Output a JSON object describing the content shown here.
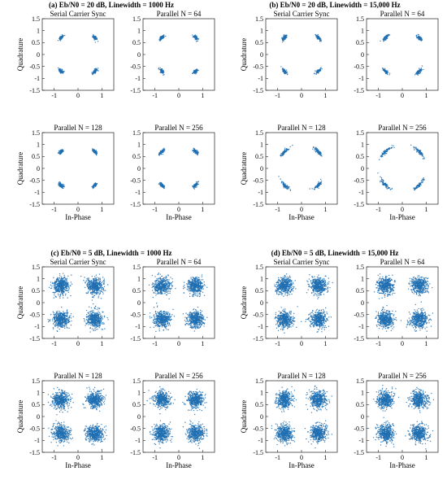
{
  "chart_data": [
    {
      "title": "(a) Eb/N0 = 20 dB, Linewidth = 1000 Hz",
      "subplots": [
        {
          "type": "scatter",
          "title": "Serial Carrier Sync",
          "xlabel": "",
          "ylabel": "Quadrature",
          "xlim": [
            -1.5,
            1.5
          ],
          "ylim": [
            -1.5,
            1.5
          ],
          "xticks": [
            "-1",
            "0",
            "1"
          ],
          "yticks": [
            "1.5",
            "1",
            "0.5",
            "0",
            "-0.5",
            "-1",
            "-1.5"
          ],
          "centers": [
            [
              -0.707,
              0.707
            ],
            [
              0.707,
              0.707
            ],
            [
              -0.707,
              -0.707
            ],
            [
              0.707,
              -0.707
            ]
          ],
          "noise_std": 0.03,
          "phase_spread": 0.06,
          "points_per_cluster": 80,
          "color": "#1f6fb2"
        },
        {
          "type": "scatter",
          "title": "Parallel N = 64",
          "xlabel": "",
          "ylabel": "",
          "xlim": [
            -1.5,
            1.5
          ],
          "ylim": [
            -1.5,
            1.5
          ],
          "xticks": [
            "-1",
            "0",
            "1"
          ],
          "yticks": [
            "1.5",
            "1",
            "0.5",
            "0",
            "-0.5",
            "-1",
            "-1.5"
          ],
          "centers": [
            [
              -0.707,
              0.707
            ],
            [
              0.707,
              0.707
            ],
            [
              -0.707,
              -0.707
            ],
            [
              0.707,
              -0.707
            ]
          ],
          "noise_std": 0.03,
          "phase_spread": 0.06,
          "points_per_cluster": 80,
          "color": "#1f6fb2"
        },
        {
          "type": "scatter",
          "title": "Parallel N = 128",
          "xlabel": "In-Phase",
          "ylabel": "Quadrature",
          "xlim": [
            -1.5,
            1.5
          ],
          "ylim": [
            -1.5,
            1.5
          ],
          "xticks": [
            "-1",
            "0",
            "1"
          ],
          "yticks": [
            "1.5",
            "1",
            "0.5",
            "0",
            "-0.5",
            "-1",
            "-1.5"
          ],
          "centers": [
            [
              -0.707,
              0.707
            ],
            [
              0.707,
              0.707
            ],
            [
              -0.707,
              -0.707
            ],
            [
              0.707,
              -0.707
            ]
          ],
          "noise_std": 0.03,
          "phase_spread": 0.06,
          "points_per_cluster": 80,
          "color": "#1f6fb2"
        },
        {
          "type": "scatter",
          "title": "Parallel N = 256",
          "xlabel": "In-Phase",
          "ylabel": "",
          "xlim": [
            -1.5,
            1.5
          ],
          "ylim": [
            -1.5,
            1.5
          ],
          "xticks": [
            "-1",
            "0",
            "1"
          ],
          "yticks": [
            "1.5",
            "1",
            "0.5",
            "0",
            "-0.5",
            "-1",
            "-1.5"
          ],
          "centers": [
            [
              -0.707,
              0.707
            ],
            [
              0.707,
              0.707
            ],
            [
              -0.707,
              -0.707
            ],
            [
              0.707,
              -0.707
            ]
          ],
          "noise_std": 0.03,
          "phase_spread": 0.07,
          "points_per_cluster": 80,
          "color": "#1f6fb2"
        }
      ]
    },
    {
      "title": "(b) Eb/N0 = 20 dB, Linewidth = 15,000 Hz",
      "subplots": [
        {
          "type": "scatter",
          "title": "Serial Carrier Sync",
          "xlabel": "",
          "ylabel": "Quadrature",
          "xlim": [
            -1.5,
            1.5
          ],
          "ylim": [
            -1.5,
            1.5
          ],
          "xticks": [
            "-1",
            "0",
            "1"
          ],
          "yticks": [
            "1.5",
            "1",
            "0.5",
            "0",
            "-0.5",
            "-1",
            "-1.5"
          ],
          "centers": [
            [
              -0.707,
              0.707
            ],
            [
              0.707,
              0.707
            ],
            [
              -0.707,
              -0.707
            ],
            [
              0.707,
              -0.707
            ]
          ],
          "noise_std": 0.03,
          "phase_spread": 0.07,
          "points_per_cluster": 80,
          "color": "#1f6fb2"
        },
        {
          "type": "scatter",
          "title": "Parallel N = 64",
          "xlabel": "",
          "ylabel": "",
          "xlim": [
            -1.5,
            1.5
          ],
          "ylim": [
            -1.5,
            1.5
          ],
          "xticks": [
            "-1",
            "0",
            "1"
          ],
          "yticks": [
            "1.5",
            "1",
            "0.5",
            "0",
            "-0.5",
            "-1",
            "-1.5"
          ],
          "centers": [
            [
              -0.707,
              0.707
            ],
            [
              0.707,
              0.707
            ],
            [
              -0.707,
              -0.707
            ],
            [
              0.707,
              -0.707
            ]
          ],
          "noise_std": 0.03,
          "phase_spread": 0.08,
          "points_per_cluster": 80,
          "color": "#1f6fb2"
        },
        {
          "type": "scatter",
          "title": "Parallel N = 128",
          "xlabel": "In-Phase",
          "ylabel": "Quadrature",
          "xlim": [
            -1.5,
            1.5
          ],
          "ylim": [
            -1.5,
            1.5
          ],
          "xticks": [
            "-1",
            "0",
            "1"
          ],
          "yticks": [
            "1.5",
            "1",
            "0.5",
            "0",
            "-0.5",
            "-1",
            "-1.5"
          ],
          "centers": [
            [
              -0.707,
              0.707
            ],
            [
              0.707,
              0.707
            ],
            [
              -0.707,
              -0.707
            ],
            [
              0.707,
              -0.707
            ]
          ],
          "noise_std": 0.03,
          "phase_spread": 0.12,
          "points_per_cluster": 80,
          "color": "#1f6fb2"
        },
        {
          "type": "scatter",
          "title": "Parallel N = 256",
          "xlabel": "In-Phase",
          "ylabel": "",
          "xlim": [
            -1.5,
            1.5
          ],
          "ylim": [
            -1.5,
            1.5
          ],
          "xticks": [
            "-1",
            "0",
            "1"
          ],
          "yticks": [
            "1.5",
            "1",
            "0.5",
            "0",
            "-0.5",
            "-1",
            "-1.5"
          ],
          "centers": [
            [
              -0.707,
              0.707
            ],
            [
              0.707,
              0.707
            ],
            [
              -0.707,
              -0.707
            ],
            [
              0.707,
              -0.707
            ]
          ],
          "noise_std": 0.03,
          "phase_spread": 0.16,
          "points_per_cluster": 80,
          "color": "#1f6fb2"
        }
      ]
    },
    {
      "title": "(c) Eb/N0 = 5 dB, Linewidth = 1000 Hz",
      "subplots": [
        {
          "type": "scatter",
          "title": "Serial Carrier Sync",
          "xlabel": "",
          "ylabel": "Quadrature",
          "xlim": [
            -1.5,
            1.5
          ],
          "ylim": [
            -1.5,
            1.5
          ],
          "xticks": [
            "-1",
            "0",
            "1"
          ],
          "yticks": [
            "1.5",
            "1",
            "0.5",
            "0",
            "-0.5",
            "-1",
            "-1.5"
          ],
          "centers": [
            [
              -0.707,
              0.707
            ],
            [
              0.707,
              0.707
            ],
            [
              -0.707,
              -0.707
            ],
            [
              0.707,
              -0.707
            ]
          ],
          "noise_std": 0.17,
          "phase_spread": 0.03,
          "points_per_cluster": 450,
          "color": "#1f6fb2"
        },
        {
          "type": "scatter",
          "title": "Parallel N = 64",
          "xlabel": "",
          "ylabel": "",
          "xlim": [
            -1.5,
            1.5
          ],
          "ylim": [
            -1.5,
            1.5
          ],
          "xticks": [
            "-1",
            "0",
            "1"
          ],
          "yticks": [
            "1.5",
            "1",
            "0.5",
            "0",
            "-0.5",
            "-1",
            "-1.5"
          ],
          "centers": [
            [
              -0.707,
              0.707
            ],
            [
              0.707,
              0.707
            ],
            [
              -0.707,
              -0.707
            ],
            [
              0.707,
              -0.707
            ]
          ],
          "noise_std": 0.17,
          "phase_spread": 0.03,
          "points_per_cluster": 450,
          "color": "#1f6fb2"
        },
        {
          "type": "scatter",
          "title": "Parallel N = 128",
          "xlabel": "In-Phase",
          "ylabel": "Quadrature",
          "xlim": [
            -1.5,
            1.5
          ],
          "ylim": [
            -1.5,
            1.5
          ],
          "xticks": [
            "-1",
            "0",
            "1"
          ],
          "yticks": [
            "1.5",
            "1",
            "0.5",
            "0",
            "-0.5",
            "-1",
            "-1.5"
          ],
          "centers": [
            [
              -0.707,
              0.707
            ],
            [
              0.707,
              0.707
            ],
            [
              -0.707,
              -0.707
            ],
            [
              0.707,
              -0.707
            ]
          ],
          "noise_std": 0.17,
          "phase_spread": 0.03,
          "points_per_cluster": 450,
          "color": "#1f6fb2"
        },
        {
          "type": "scatter",
          "title": "Parallel N = 256",
          "xlabel": "In-Phase",
          "ylabel": "",
          "xlim": [
            -1.5,
            1.5
          ],
          "ylim": [
            -1.5,
            1.5
          ],
          "xticks": [
            "-1",
            "0",
            "1"
          ],
          "yticks": [
            "1.5",
            "1",
            "0.5",
            "0",
            "-0.5",
            "-1",
            "-1.5"
          ],
          "centers": [
            [
              -0.707,
              0.707
            ],
            [
              0.707,
              0.707
            ],
            [
              -0.707,
              -0.707
            ],
            [
              0.707,
              -0.707
            ]
          ],
          "noise_std": 0.17,
          "phase_spread": 0.03,
          "points_per_cluster": 450,
          "color": "#1f6fb2"
        }
      ]
    },
    {
      "title": "(d) Eb/N0 = 5 dB, Linewidth = 15,000 Hz",
      "subplots": [
        {
          "type": "scatter",
          "title": "Serial Carrier Sync",
          "xlabel": "",
          "ylabel": "Quadrature",
          "xlim": [
            -1.5,
            1.5
          ],
          "ylim": [
            -1.5,
            1.5
          ],
          "xticks": [
            "-1",
            "0",
            "1"
          ],
          "yticks": [
            "1.5",
            "1",
            "0.5",
            "0",
            "-0.5",
            "-1",
            "-1.5"
          ],
          "centers": [
            [
              -0.707,
              0.707
            ],
            [
              0.707,
              0.707
            ],
            [
              -0.707,
              -0.707
            ],
            [
              0.707,
              -0.707
            ]
          ],
          "noise_std": 0.17,
          "phase_spread": 0.04,
          "points_per_cluster": 450,
          "color": "#1f6fb2"
        },
        {
          "type": "scatter",
          "title": "Parallel N = 64",
          "xlabel": "",
          "ylabel": "",
          "xlim": [
            -1.5,
            1.5
          ],
          "ylim": [
            -1.5,
            1.5
          ],
          "xticks": [
            "-1",
            "0",
            "1"
          ],
          "yticks": [
            "1.5",
            "1",
            "0.5",
            "0",
            "-0.5",
            "-1",
            "-1.5"
          ],
          "centers": [
            [
              -0.707,
              0.707
            ],
            [
              0.707,
              0.707
            ],
            [
              -0.707,
              -0.707
            ],
            [
              0.707,
              -0.707
            ]
          ],
          "noise_std": 0.17,
          "phase_spread": 0.04,
          "points_per_cluster": 450,
          "color": "#1f6fb2"
        },
        {
          "type": "scatter",
          "title": "Parallel N = 128",
          "xlabel": "In-Phase",
          "ylabel": "Quadrature",
          "xlim": [
            -1.5,
            1.5
          ],
          "ylim": [
            -1.5,
            1.5
          ],
          "xticks": [
            "-1",
            "0",
            "1"
          ],
          "yticks": [
            "1.5",
            "1",
            "0.5",
            "0",
            "-0.5",
            "-1",
            "-1.5"
          ],
          "centers": [
            [
              -0.707,
              0.707
            ],
            [
              0.707,
              0.707
            ],
            [
              -0.707,
              -0.707
            ],
            [
              0.707,
              -0.707
            ]
          ],
          "noise_std": 0.17,
          "phase_spread": 0.05,
          "points_per_cluster": 450,
          "color": "#1f6fb2"
        },
        {
          "type": "scatter",
          "title": "Parallel N = 256",
          "xlabel": "In-Phase",
          "ylabel": "",
          "xlim": [
            -1.5,
            1.5
          ],
          "ylim": [
            -1.5,
            1.5
          ],
          "xticks": [
            "-1",
            "0",
            "1"
          ],
          "yticks": [
            "1.5",
            "1",
            "0.5",
            "0",
            "-0.5",
            "-1",
            "-1.5"
          ],
          "centers": [
            [
              -0.707,
              0.707
            ],
            [
              0.707,
              0.707
            ],
            [
              -0.707,
              -0.707
            ],
            [
              0.707,
              -0.707
            ]
          ],
          "noise_std": 0.17,
          "phase_spread": 0.05,
          "points_per_cluster": 450,
          "color": "#1f6fb2"
        }
      ]
    }
  ]
}
